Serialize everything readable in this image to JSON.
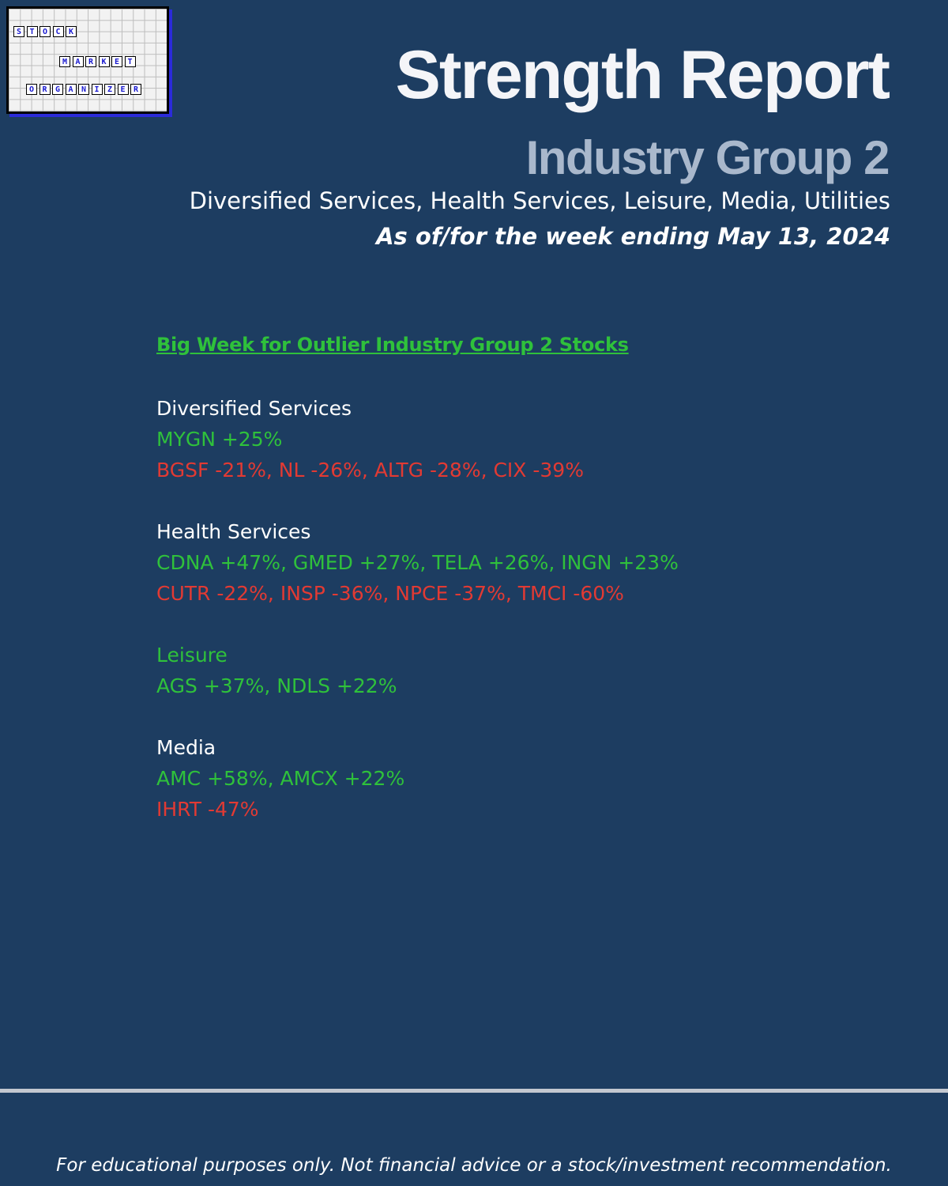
{
  "logo": {
    "row1": [
      "S",
      "T",
      "O",
      "C",
      "K"
    ],
    "row2": [
      "M",
      "A",
      "R",
      "K",
      "E",
      "T"
    ],
    "row3": [
      "O",
      "R",
      "G",
      "A",
      "N",
      "I",
      "Z",
      "E",
      "R"
    ]
  },
  "header": {
    "title": "Strength Report",
    "subtitle": "Industry Group 2",
    "groups": "Diversified Services, Health Services, Leisure, Media, Utilities",
    "as_of": "As of/for the week ending May 13, 2024"
  },
  "content": {
    "headline": "Big Week for Outlier Industry Group 2 Stocks",
    "sections": [
      {
        "name": "Diversified Services",
        "name_color": "white",
        "gainers": "MYGN +25%",
        "losers": "BGSF -21%, NL -26%, ALTG -28%, CIX -39%"
      },
      {
        "name": "Health Services",
        "name_color": "white",
        "gainers": "CDNA +47%, GMED +27%, TELA +26%, INGN +23%",
        "losers": "CUTR -22%, INSP -36%, NPCE -37%, TMCI -60%"
      },
      {
        "name": "Leisure",
        "name_color": "green",
        "gainers": "AGS +37%, NDLS +22%"
      },
      {
        "name": "Media",
        "name_color": "white",
        "gainers": "AMC +58%, AMCX +22%",
        "losers": "IHRT -47%"
      }
    ]
  },
  "footer": {
    "disclaimer": "For educational purposes only. Not financial advice or a stock/investment recommendation."
  },
  "colors": {
    "background": "#1d3d61",
    "gain": "#2fc13b",
    "loss": "#e23a33",
    "subtitle": "#a9b8cc"
  }
}
